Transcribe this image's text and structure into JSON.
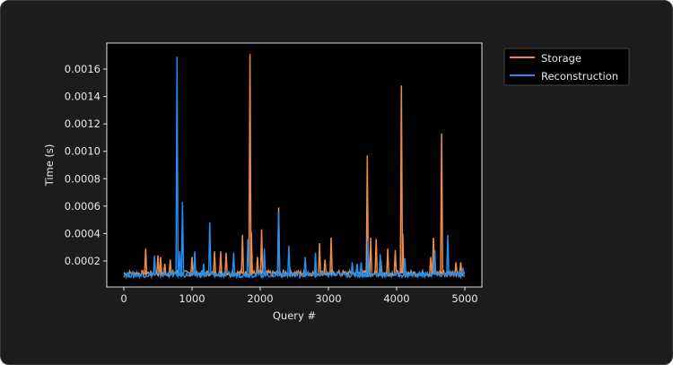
{
  "chart_data": {
    "type": "line",
    "title": "",
    "xlabel": "Query #",
    "ylabel": "Time (s)",
    "xlim": [
      -250,
      5250
    ],
    "ylim": [
      1e-05,
      0.00179
    ],
    "xticks": [
      0,
      1000,
      2000,
      3000,
      4000,
      5000
    ],
    "xtick_labels": [
      "0",
      "1000",
      "2000",
      "3000",
      "4000",
      "5000"
    ],
    "yticks": [
      0.0002,
      0.0004,
      0.0006,
      0.0008,
      0.001,
      0.0012,
      0.0014,
      0.0016
    ],
    "ytick_labels": [
      "0.0002",
      "0.0004",
      "0.0006",
      "0.0008",
      "0.0010",
      "0.0012",
      "0.0014",
      "0.0016"
    ],
    "grid": false,
    "legend": "outside-top-right",
    "series": [
      {
        "name": "Storage",
        "color": "#ec8a48",
        "baseline": 0.00011,
        "x_range": [
          0,
          5000
        ],
        "spikes": [
          [
            320,
            0.00029
          ],
          [
            500,
            0.00024
          ],
          [
            540,
            0.00023
          ],
          [
            600,
            0.00018
          ],
          [
            680,
            0.00021
          ],
          [
            1000,
            0.00023
          ],
          [
            1330,
            0.00027
          ],
          [
            1420,
            0.00027
          ],
          [
            1500,
            0.00026
          ],
          [
            1740,
            0.00039
          ],
          [
            1850,
            0.00171
          ],
          [
            1870,
            0.00041
          ],
          [
            1960,
            0.00023
          ],
          [
            2020,
            0.00043
          ],
          [
            2270,
            0.00059
          ],
          [
            2870,
            0.00033
          ],
          [
            2950,
            0.00021
          ],
          [
            3040,
            0.00037
          ],
          [
            3570,
            0.00097
          ],
          [
            3620,
            0.00037
          ],
          [
            3700,
            0.00036
          ],
          [
            3770,
            0.0002
          ],
          [
            3870,
            0.00029
          ],
          [
            3980,
            0.00028
          ],
          [
            4070,
            0.00148
          ],
          [
            4090,
            0.0004
          ],
          [
            4500,
            0.00023
          ],
          [
            4540,
            0.00037
          ],
          [
            4660,
            0.00113
          ],
          [
            4870,
            0.00019
          ],
          [
            4940,
            0.00019
          ]
        ]
      },
      {
        "name": "Reconstruction",
        "color": "#1f8ff0",
        "baseline": 0.0001,
        "x_range": [
          0,
          5000
        ],
        "spikes": [
          [
            450,
            0.00024
          ],
          [
            780,
            0.00169
          ],
          [
            820,
            0.00027
          ],
          [
            860,
            0.00063
          ],
          [
            1040,
            0.00027
          ],
          [
            1170,
            0.00018
          ],
          [
            1260,
            0.00048
          ],
          [
            1610,
            0.00026
          ],
          [
            1820,
            0.00036
          ],
          [
            2060,
            0.00029
          ],
          [
            2270,
            0.00056
          ],
          [
            2420,
            0.00031
          ],
          [
            2660,
            0.00023
          ],
          [
            2810,
            0.00026
          ],
          [
            3350,
            0.00019
          ],
          [
            3420,
            0.00018
          ],
          [
            3480,
            0.00019
          ],
          [
            3580,
            0.00035
          ],
          [
            3760,
            0.00025
          ],
          [
            4120,
            0.00022
          ],
          [
            4560,
            0.00028
          ],
          [
            4750,
            0.00039
          ],
          [
            4970,
            0.00015
          ]
        ]
      }
    ]
  }
}
